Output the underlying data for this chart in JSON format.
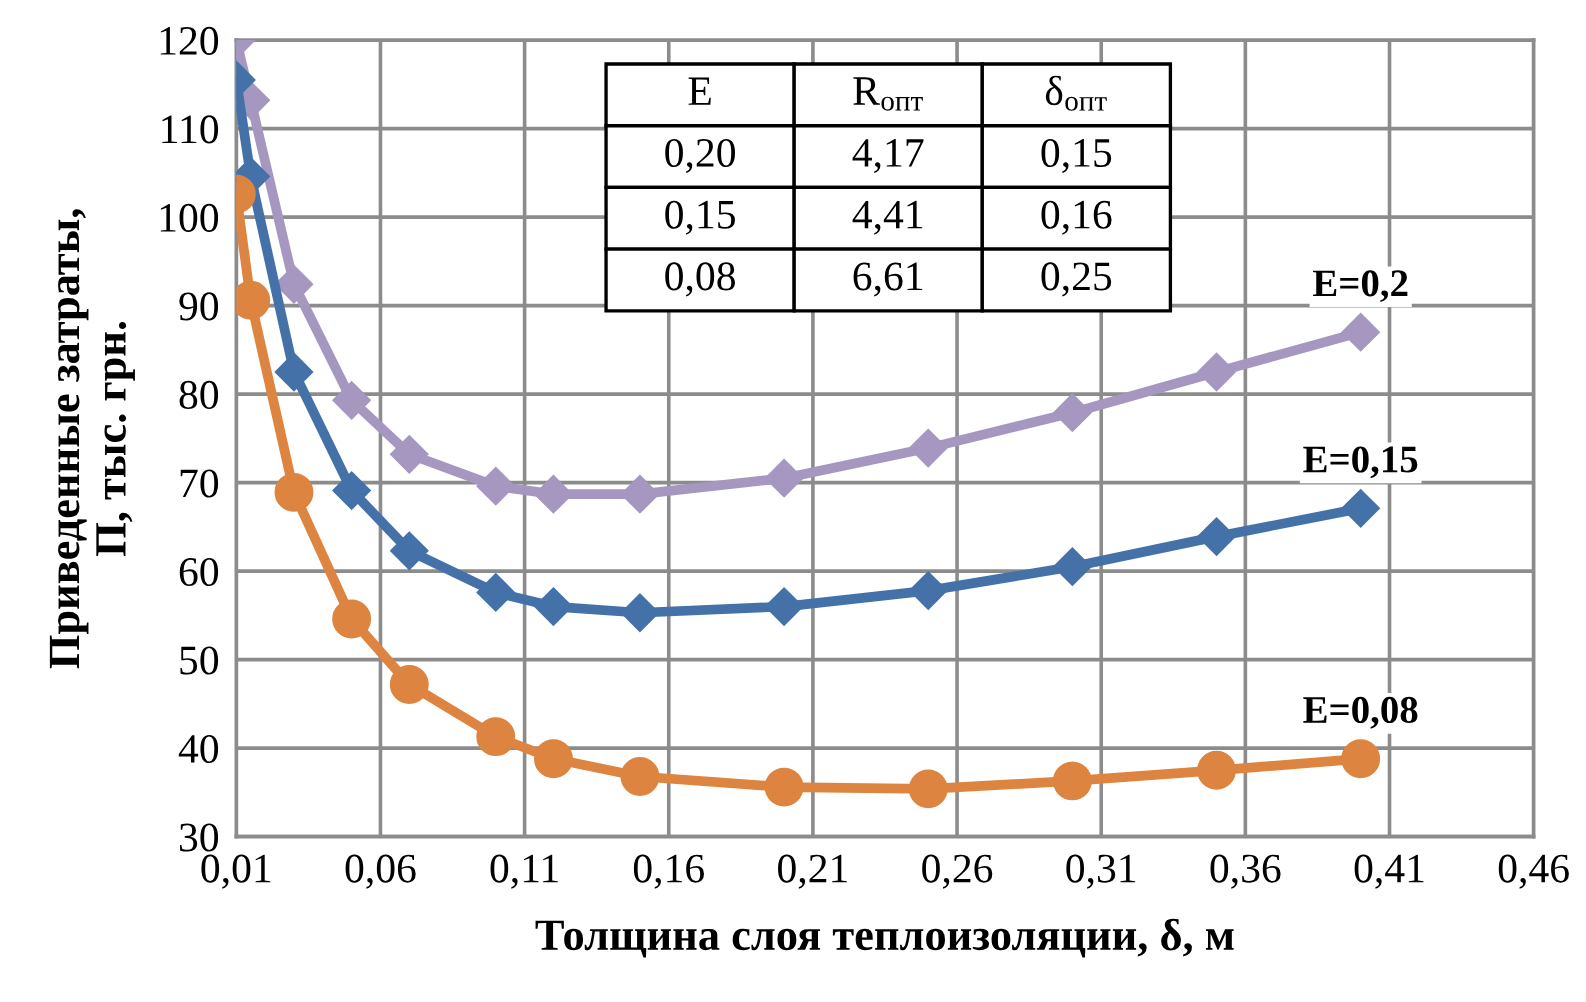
{
  "chart_data": {
    "type": "line",
    "xlabel": "Толщина слоя теплоизоляции, δ, м",
    "ylabel": "Приведенные затраты,\nП, тыс. грн.",
    "xlim": [
      0.01,
      0.46
    ],
    "xticks": [
      {
        "value": 0.01,
        "label": "0,01"
      },
      {
        "value": 0.06,
        "label": "0,06"
      },
      {
        "value": 0.11,
        "label": "0,11"
      },
      {
        "value": 0.16,
        "label": "0,16"
      },
      {
        "value": 0.21,
        "label": "0,21"
      },
      {
        "value": 0.26,
        "label": "0,26"
      },
      {
        "value": 0.31,
        "label": "0,31"
      },
      {
        "value": 0.36,
        "label": "0,36"
      },
      {
        "value": 0.41,
        "label": "0,41"
      },
      {
        "value": 0.46,
        "label": "0,46"
      }
    ],
    "ylim": [
      30,
      120
    ],
    "yticks": [
      30,
      40,
      50,
      60,
      70,
      80,
      90,
      100,
      110,
      120
    ],
    "grid": true,
    "legend": false,
    "x": [
      0.01,
      0.015,
      0.03,
      0.05,
      0.07,
      0.1,
      0.12,
      0.15,
      0.2,
      0.25,
      0.3,
      0.35,
      0.4
    ],
    "series": [
      {
        "name": "E=0,2",
        "color": "#a597c0",
        "marker": "diamond",
        "values": [
          120,
          113.2,
          92.4,
          79.3,
          73.2,
          69.6,
          68.7,
          68.7,
          70.5,
          73.9,
          77.9,
          82.5,
          87
        ]
      },
      {
        "name": "E=0,15",
        "color": "#4472a8",
        "marker": "diamond",
        "values": [
          115.5,
          104.6,
          82.5,
          69.1,
          62.3,
          57.6,
          56,
          55.3,
          56,
          57.8,
          60.5,
          63.9,
          67.1
        ]
      },
      {
        "name": "E=0,08",
        "color": "#dd8540",
        "marker": "circle",
        "values": [
          102.6,
          90.6,
          68.9,
          54.6,
          47.2,
          41.3,
          38.8,
          36.8,
          35.6,
          35.4,
          36.3,
          37.5,
          38.8
        ]
      }
    ],
    "annotations": [
      "E",
      "R$_{опт}$",
      "δ$_{опт}$",
      "0,20",
      "4,17",
      "0,15",
      "0,15",
      "4,41",
      "0,16",
      "0,08",
      "6,61",
      "0,25"
    ]
  }
}
